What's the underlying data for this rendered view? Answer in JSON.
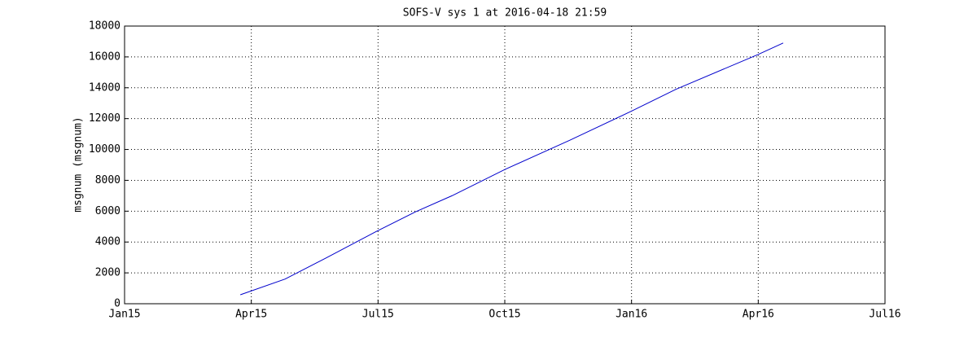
{
  "chart_data": {
    "type": "line",
    "title": "SOFS-V sys 1 at 2016-04-18 21:59",
    "y_label": "msgnum (msgnum)",
    "x": [
      2.74,
      3.8,
      4.76,
      5.97,
      6.88,
      7.75,
      9.0,
      10.54,
      12.01,
      13.05,
      14.99,
      15.59
    ],
    "series": [
      {
        "color": "#0000cc",
        "values": [
          580,
          1600,
          2950,
          4700,
          5950,
          7000,
          8700,
          10600,
          12500,
          13900,
          16150,
          16900
        ]
      }
    ],
    "xlim": [
      0,
      18
    ],
    "xticks": [
      {
        "value": 0,
        "label": "Jan15"
      },
      {
        "value": 3,
        "label": "Apr15"
      },
      {
        "value": 6,
        "label": "Jul15"
      },
      {
        "value": 9,
        "label": "Oct15"
      },
      {
        "value": 12,
        "label": "Jan16"
      },
      {
        "value": 15,
        "label": "Apr16"
      },
      {
        "value": 18,
        "label": "Jul16"
      }
    ],
    "ylim": [
      0,
      18000
    ],
    "yticks": [
      0,
      2000,
      4000,
      6000,
      8000,
      10000,
      12000,
      14000,
      16000,
      18000
    ],
    "grid": true
  }
}
